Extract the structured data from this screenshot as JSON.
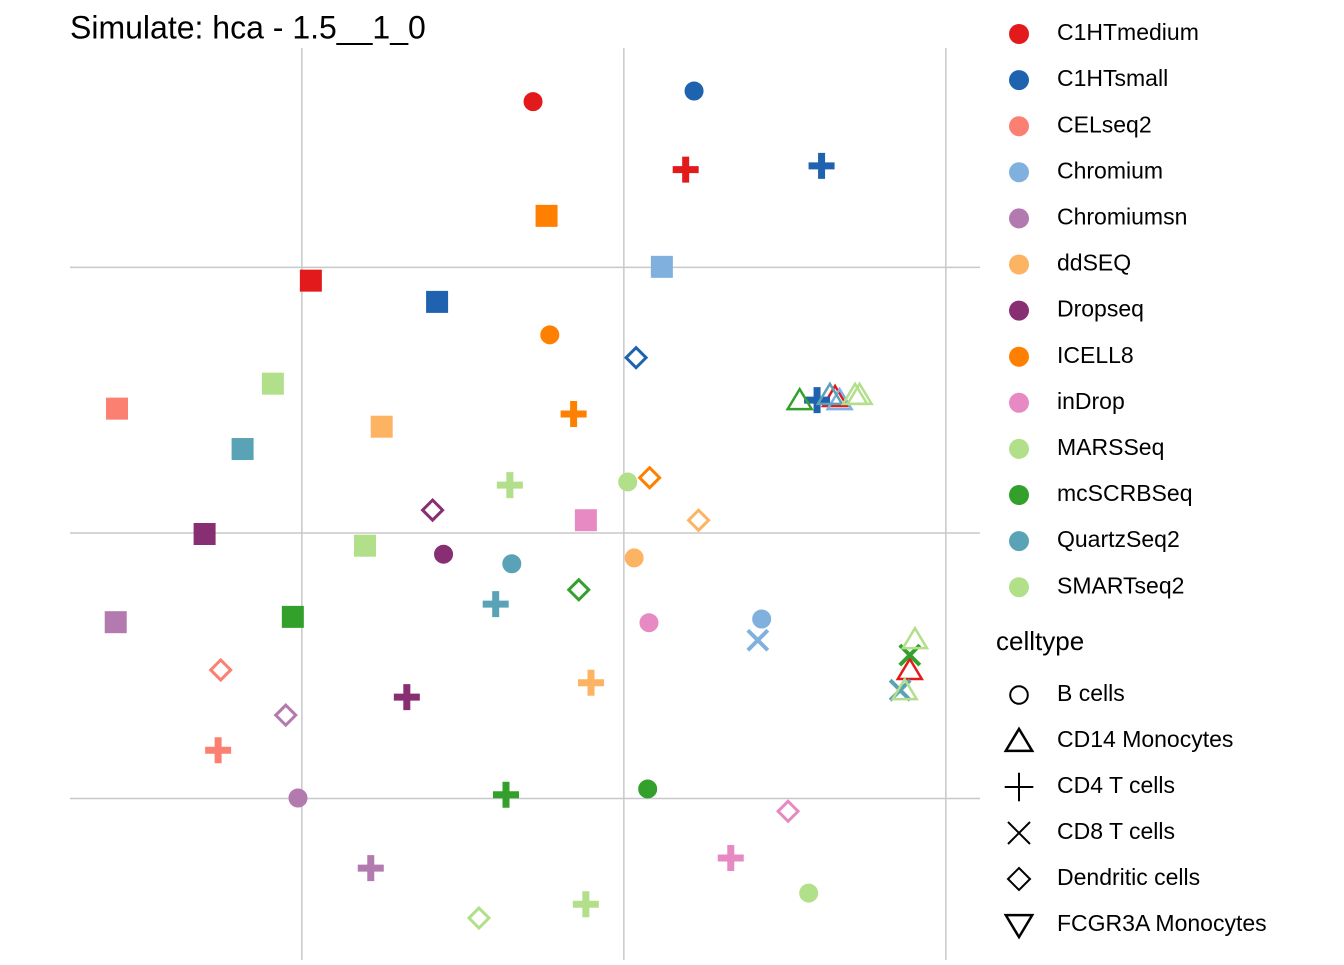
{
  "chart_data": {
    "type": "scatter",
    "title": "Simulate: hca - 1.5__1_0",
    "xlim": [
      -8.6,
      5.53
    ],
    "ylim": [
      -8.04,
      9.13
    ],
    "xticks": [
      -5,
      0,
      5
    ],
    "yticks": [
      -5,
      0,
      5
    ],
    "grid": true,
    "series": [
      {
        "name": "C1HTmedium",
        "color": "#e31a1c",
        "x": [
          -1.41,
          0.96,
          -4.86,
          3.28,
          4.44
        ],
        "y": [
          8.12,
          6.84,
          4.75,
          2.56,
          -2.58
        ],
        "shape": [
          0,
          2,
          null,
          1,
          1
        ]
      },
      {
        "name": "C1HTsmall",
        "color": "#1f63b0",
        "x": [
          1.09,
          3.07,
          -2.9,
          0.19,
          3.0
        ],
        "y": [
          8.32,
          6.91,
          4.35,
          3.3,
          2.5
        ],
        "shape": [
          0,
          2,
          null,
          4,
          2
        ]
      },
      {
        "name": "CELseq2",
        "color": "#fb8072",
        "x": [
          -7.87,
          -6.26,
          -6.3
        ],
        "y": [
          2.34,
          -2.58,
          -4.09
        ],
        "shape": [
          null,
          4,
          2
        ]
      },
      {
        "name": "Chromium",
        "color": "#80b1de",
        "x": [
          0.59,
          2.14,
          2.08,
          3.35
        ],
        "y": [
          5.01,
          -1.62,
          -2.02,
          2.5
        ],
        "shape": [
          null,
          0,
          3,
          1
        ]
      },
      {
        "name": "Chromiumsn",
        "color": "#b27aae",
        "x": [
          -7.89,
          -5.25,
          -5.06,
          -3.93
        ],
        "y": [
          -1.68,
          -3.43,
          -4.99,
          -6.31
        ],
        "shape": [
          null,
          4,
          0,
          2
        ]
      },
      {
        "name": "ddSEQ",
        "color": "#fdb462",
        "x": [
          -3.76,
          0.16,
          1.16,
          -0.51
        ],
        "y": [
          2.0,
          -0.47,
          0.24,
          -2.82
        ],
        "shape": [
          null,
          0,
          4,
          2
        ]
      },
      {
        "name": "Dropseq",
        "color": "#882e72",
        "x": [
          -6.51,
          -2.97,
          -2.8,
          -3.37
        ],
        "y": [
          -0.02,
          0.43,
          -0.4,
          -3.09
        ],
        "shape": [
          null,
          4,
          0,
          2
        ]
      },
      {
        "name": "ICELL8",
        "color": "#ff7f00",
        "x": [
          -1.2,
          -1.15,
          -0.78,
          0.4
        ],
        "y": [
          5.97,
          3.73,
          2.24,
          1.04
        ],
        "shape": [
          null,
          0,
          2,
          4
        ]
      },
      {
        "name": "inDrop",
        "color": "#e78ac3",
        "x": [
          -0.59,
          0.39,
          2.55,
          1.66
        ],
        "y": [
          0.24,
          -1.69,
          -5.24,
          -6.12
        ],
        "shape": [
          null,
          0,
          4,
          2
        ]
      },
      {
        "name": "MARSSeq",
        "color": "#b2df8a",
        "x": [
          -5.45,
          -4.02,
          -1.77,
          0.06,
          3.66
        ],
        "y": [
          2.81,
          -0.24,
          0.9,
          0.96,
          2.6
        ],
        "shape": [
          null,
          null,
          2,
          0,
          1
        ]
      },
      {
        "name": "mcSCRBSeq",
        "color": "#33a02c",
        "x": [
          -5.14,
          -0.7,
          -1.83,
          0.37,
          4.44,
          2.73
        ],
        "y": [
          -1.58,
          -1.07,
          -4.93,
          -4.82,
          -2.3,
          2.5
        ],
        "shape": [
          null,
          4,
          2,
          0,
          3,
          1
        ]
      },
      {
        "name": "QuartzSeq2",
        "color": "#5aa3b6",
        "x": [
          -5.92,
          -1.74,
          -1.99,
          3.2,
          4.29
        ],
        "y": [
          1.58,
          -0.58,
          -1.34,
          2.6,
          -2.96
        ],
        "shape": [
          null,
          0,
          2,
          1,
          3
        ]
      },
      {
        "name": "SMARTseq2",
        "color": "#b2df8a",
        "x": [
          -2.25,
          -0.59,
          2.87,
          4.52,
          4.36,
          3.59
        ],
        "y": [
          -7.25,
          -6.99,
          -6.78,
          -2.0,
          -2.96,
          2.6
        ],
        "shape": [
          4,
          2,
          0,
          1,
          1,
          1
        ]
      }
    ],
    "shape_legend": {
      "title": "celltype",
      "names": [
        "B cells",
        "CD14 Monocytes",
        "CD4 T cells",
        "CD8 T cells",
        "Dendritic cells",
        "FCGR3A Monocytes"
      ]
    }
  }
}
